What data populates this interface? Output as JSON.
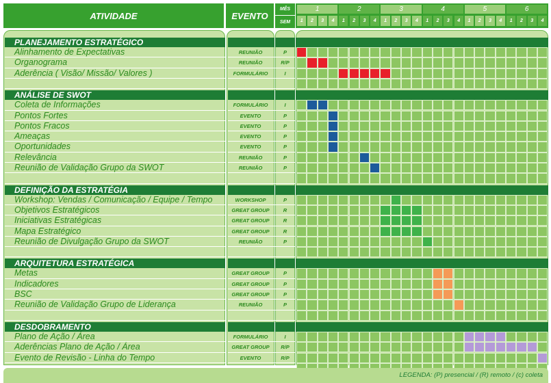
{
  "header": {
    "atividade": "ATIVIDADE",
    "evento": "EVENTO",
    "mes_label": "MÊS",
    "sem_label": "SEM",
    "months": [
      "1",
      "2",
      "3",
      "4",
      "5",
      "6"
    ],
    "weeks": [
      "1",
      "2",
      "3",
      "4"
    ]
  },
  "sections": [
    {
      "title": "PLANEJAMENTO ESTRATÉGICO",
      "rows": [
        {
          "activity": "Alinhamento de Expectativas",
          "event": "REUNIÃO",
          "mode": "P",
          "weeks": [
            1
          ]
        },
        {
          "activity": "Organograma",
          "event": "REUNIÃO",
          "mode": "R/P",
          "weeks": [
            2,
            3
          ]
        },
        {
          "activity": "Aderência ( Visão/ Missão/ Valores )",
          "event": "FORMULÁRIO",
          "mode": "I",
          "weeks": [
            5,
            6,
            7,
            8,
            9
          ]
        }
      ]
    },
    {
      "title": "ANÁLISE DE SWOT",
      "rows": [
        {
          "activity": "Coleta de Informações",
          "event": "FORMULÁRIO",
          "mode": "I",
          "weeks": [
            2,
            3
          ]
        },
        {
          "activity": "Pontos Fortes",
          "event": "EVENTO",
          "mode": "P",
          "weeks": [
            4
          ]
        },
        {
          "activity": "Pontos Fracos",
          "event": "EVENTO",
          "mode": "P",
          "weeks": [
            4
          ]
        },
        {
          "activity": "Ameaças",
          "event": "EVENTO",
          "mode": "P",
          "weeks": [
            4
          ]
        },
        {
          "activity": "Oportunidades",
          "event": "EVENTO",
          "mode": "P",
          "weeks": [
            4
          ]
        },
        {
          "activity": "Relevância",
          "event": "REUNIÃO",
          "mode": "P",
          "weeks": [
            7
          ]
        },
        {
          "activity": "Reunião de Validação Grupo da SWOT",
          "event": "REUNIÃO",
          "mode": "P",
          "weeks": [
            8
          ]
        }
      ]
    },
    {
      "title": "DEFINIÇÃO DA ESTRATÉGIA",
      "rows": [
        {
          "activity": "Workshop: Vendas / Comunicação / Equipe / Tempo",
          "event": "WORKSHOP",
          "mode": "P",
          "weeks": [
            10
          ]
        },
        {
          "activity": "Objetivos Estratégicos",
          "event": "GREAT GROUP",
          "mode": "R",
          "weeks": [
            9,
            10,
            11,
            12
          ]
        },
        {
          "activity": "Iniciativas Estratégicas",
          "event": "GREAT GROUP",
          "mode": "R",
          "weeks": [
            9,
            10,
            11,
            12
          ]
        },
        {
          "activity": "Mapa Estratégico",
          "event": "GREAT GROUP",
          "mode": "R",
          "weeks": [
            9,
            10,
            11,
            12
          ]
        },
        {
          "activity": "Reunião de Divulgação Grupo da SWOT",
          "event": "REUNIÃO",
          "mode": "P",
          "weeks": [
            13
          ]
        }
      ]
    },
    {
      "title": "ARQUITETURA ESTRATÉGICA",
      "rows": [
        {
          "activity": "Metas",
          "event": "GREAT GROUP",
          "mode": "P",
          "weeks": [
            14,
            15
          ]
        },
        {
          "activity": "Indicadores",
          "event": "GREAT GROUP",
          "mode": "P",
          "weeks": [
            14,
            15
          ]
        },
        {
          "activity": "BSC",
          "event": "GREAT GROUP",
          "mode": "P",
          "weeks": [
            14,
            15
          ]
        },
        {
          "activity": "Reunião de Validação Grupo de Liderança",
          "event": "REUNIÃO",
          "mode": "P",
          "weeks": [
            16
          ]
        }
      ]
    },
    {
      "title": "DESDOBRAMENTO",
      "rows": [
        {
          "activity": "Plano de Ação / Área",
          "event": "FORMULÁRIO",
          "mode": "I",
          "weeks": [
            17,
            18,
            19,
            20
          ]
        },
        {
          "activity": "Aderências Plano de Ação / Área",
          "event": "GREAT GROUP",
          "mode": "R/P",
          "weeks": [
            17,
            18,
            19,
            20,
            21,
            22,
            23
          ]
        },
        {
          "activity": "Evento de Revisão - Linha do Tempo",
          "event": "EVENTO",
          "mode": "R/P",
          "weeks": [
            24
          ]
        }
      ]
    }
  ],
  "section_colors": [
    "#e8202a",
    "#1d5b9b",
    "#3fb24a",
    "#f59a57",
    "#b49ad8"
  ],
  "legend": "LEGENDA: (P) presencial / (R) remoto / (c) coleta"
}
